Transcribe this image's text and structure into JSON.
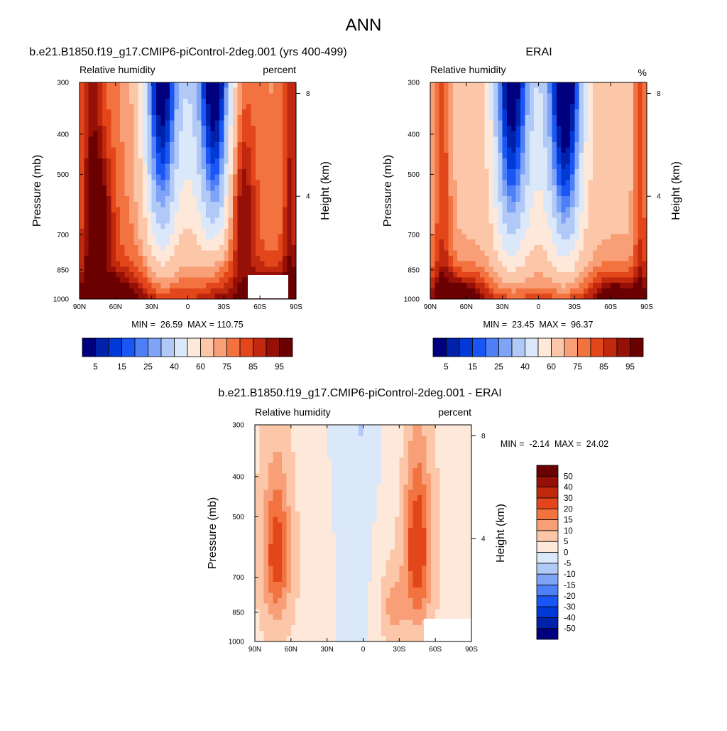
{
  "figure": {
    "title": "ANN"
  },
  "chart_data": [
    {
      "type": "heatmap",
      "panel_title": "b.e21.B1850.f19_g17.CMIP6-piControl-2deg.001 (yrs 400-499)",
      "subtitle_left": "Relative humidity",
      "subtitle_right": "percent",
      "xlabel": "",
      "ylabel": "Pressure (mb)",
      "y2label": "Height (km)",
      "x_ticks": [
        "90N",
        "60N",
        "30N",
        "0",
        "30S",
        "60S",
        "90S"
      ],
      "y_ticks": [
        "300",
        "400",
        "500",
        "700",
        "850",
        "1000"
      ],
      "y_tick_values": [
        300,
        400,
        500,
        700,
        850,
        1000
      ],
      "y_scale": "log",
      "ylim": [
        1000,
        300
      ],
      "y2_ticks": [
        "8",
        "4"
      ],
      "y2_tick_values_km": [
        8,
        4
      ],
      "xlim": [
        90,
        -90
      ],
      "stats": "MIN =  26.59  MAX = 110.75",
      "min": 26.59,
      "max": 110.75,
      "field": "model",
      "colorbar": {
        "orientation": "horizontal",
        "levels": [
          5,
          10,
          15,
          20,
          25,
          30,
          40,
          50,
          60,
          70,
          75,
          80,
          85,
          90,
          95
        ],
        "tick_labels": [
          "5",
          "15",
          "25",
          "40",
          "60",
          "75",
          "85",
          "95"
        ],
        "colors": [
          "#00007f",
          "#0021aa",
          "#0039d6",
          "#1a56f5",
          "#4d7ff7",
          "#7fa3f7",
          "#b0c9f7",
          "#dbe8fa",
          "#fde8da",
          "#fbc7a8",
          "#f89f77",
          "#f2733f",
          "#e3461a",
          "#c1290e",
          "#961008",
          "#6a0000"
        ]
      }
    },
    {
      "type": "heatmap",
      "panel_title": "ERAI",
      "subtitle_left": "Relative humidity",
      "subtitle_right": "%",
      "xlabel": "",
      "ylabel": "Pressure (mb)",
      "y2label": "Height (km)",
      "x_ticks": [
        "90N",
        "60N",
        "30N",
        "0",
        "30S",
        "60S",
        "90S"
      ],
      "y_ticks": [
        "300",
        "400",
        "500",
        "700",
        "850",
        "1000"
      ],
      "y_tick_values": [
        300,
        400,
        500,
        700,
        850,
        1000
      ],
      "y_scale": "log",
      "ylim": [
        1000,
        300
      ],
      "y2_ticks": [
        "8",
        "4"
      ],
      "y2_tick_values_km": [
        8,
        4
      ],
      "xlim": [
        90,
        -90
      ],
      "stats": "MIN =  23.45  MAX =  96.37",
      "min": 23.45,
      "max": 96.37,
      "field": "obs",
      "colorbar": {
        "orientation": "horizontal",
        "levels": [
          5,
          10,
          15,
          20,
          25,
          30,
          40,
          50,
          60,
          70,
          75,
          80,
          85,
          90,
          95
        ],
        "tick_labels": [
          "5",
          "15",
          "25",
          "40",
          "60",
          "75",
          "85",
          "95"
        ],
        "colors": [
          "#00007f",
          "#0021aa",
          "#0039d6",
          "#1a56f5",
          "#4d7ff7",
          "#7fa3f7",
          "#b0c9f7",
          "#dbe8fa",
          "#fde8da",
          "#fbc7a8",
          "#f89f77",
          "#f2733f",
          "#e3461a",
          "#c1290e",
          "#961008",
          "#6a0000"
        ]
      }
    },
    {
      "type": "heatmap",
      "panel_title": "b.e21.B1850.f19_g17.CMIP6-piControl-2deg.001 - ERAI",
      "subtitle_left": "Relative humidity",
      "subtitle_right": "percent",
      "xlabel": "",
      "ylabel": "Pressure (mb)",
      "y2label": "Height (km)",
      "x_ticks": [
        "90N",
        "60N",
        "30N",
        "0",
        "30S",
        "60S",
        "90S"
      ],
      "y_ticks": [
        "300",
        "400",
        "500",
        "700",
        "850",
        "1000"
      ],
      "y_tick_values": [
        300,
        400,
        500,
        700,
        850,
        1000
      ],
      "y_scale": "log",
      "ylim": [
        1000,
        300
      ],
      "y2_ticks": [
        "8",
        "4"
      ],
      "y2_tick_values_km": [
        8,
        4
      ],
      "xlim": [
        90,
        -90
      ],
      "stats": "MIN =  -2.14  MAX =  24.02",
      "min": -2.14,
      "max": 24.02,
      "field": "diff",
      "colorbar": {
        "orientation": "vertical",
        "levels": [
          -50,
          -40,
          -30,
          -20,
          -15,
          -10,
          -5,
          0,
          5,
          10,
          15,
          20,
          30,
          40,
          50
        ],
        "tick_labels": [
          "50",
          "40",
          "30",
          "20",
          "15",
          "10",
          "5",
          "0",
          "-5",
          "-10",
          "-15",
          "-20",
          "-30",
          "-40",
          "-50"
        ],
        "colors": [
          "#00007f",
          "#0021aa",
          "#0039d6",
          "#1a56f5",
          "#4d7ff7",
          "#7fa3f7",
          "#b0c9f7",
          "#dbe8fa",
          "#fde8da",
          "#fbc7a8",
          "#f89f77",
          "#f2733f",
          "#e3461a",
          "#c1290e",
          "#961008",
          "#6a0000"
        ]
      }
    }
  ]
}
